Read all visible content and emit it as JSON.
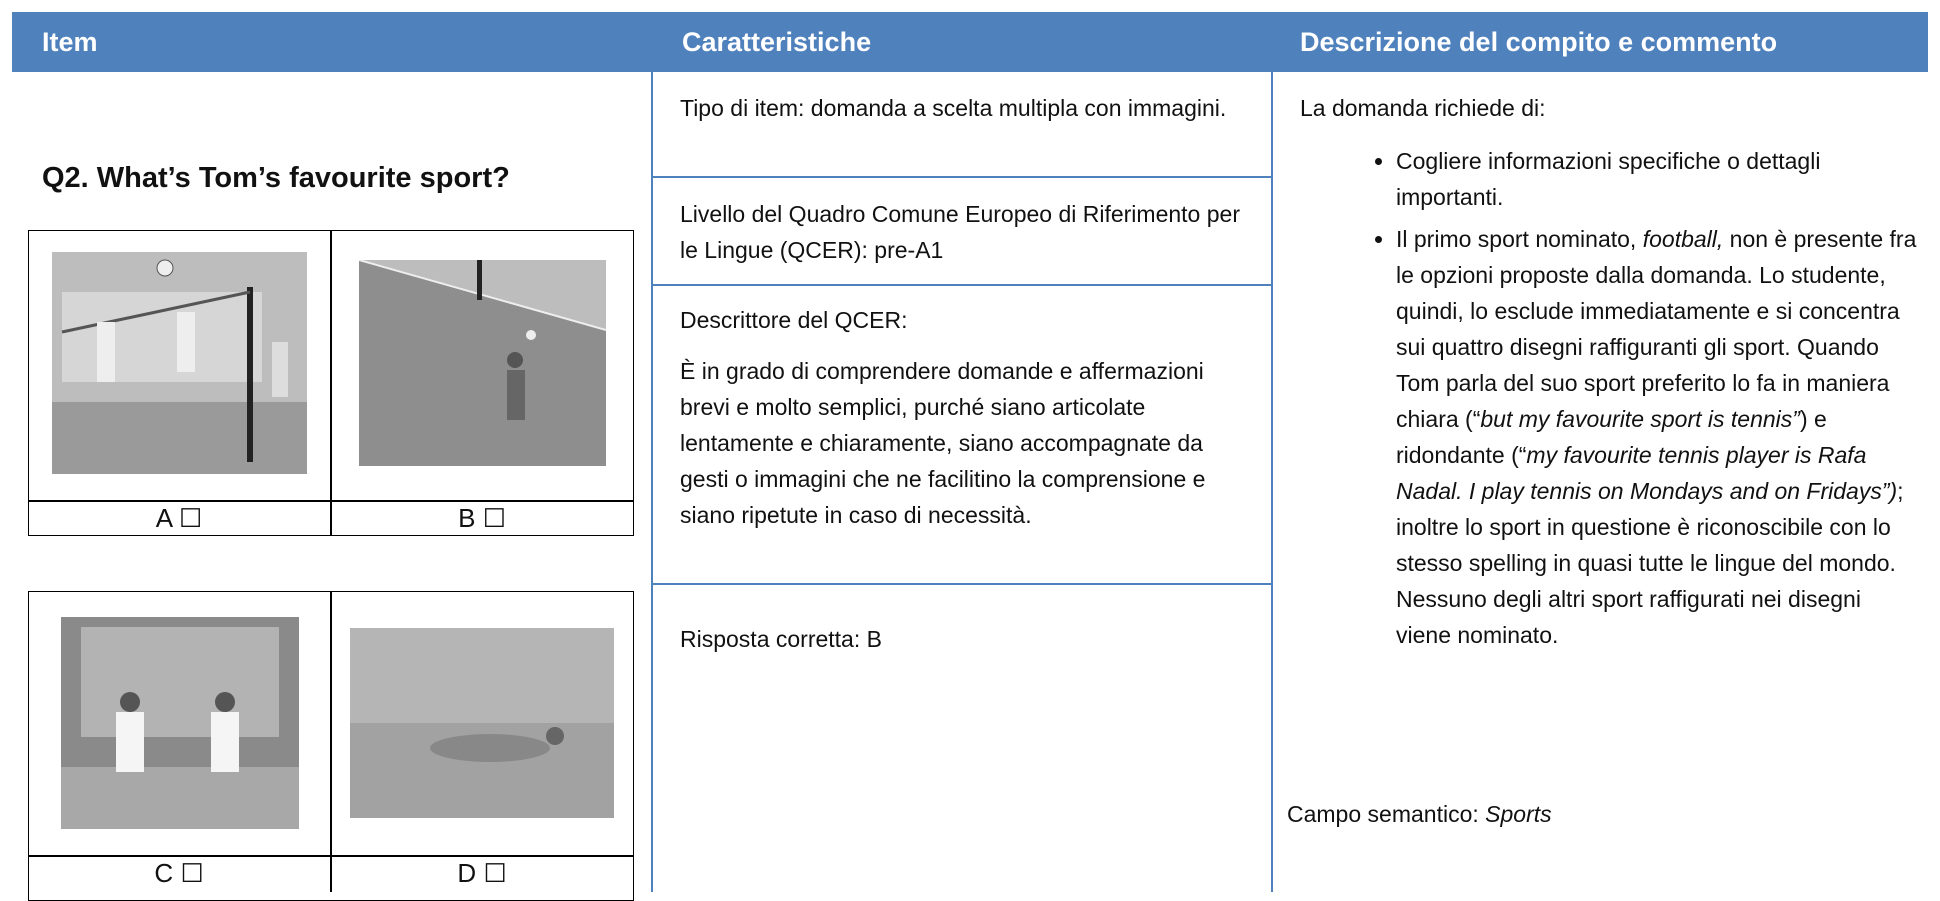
{
  "header": {
    "columns": [
      "Item",
      "Caratteristiche",
      "Descrizione del compito e commento"
    ]
  },
  "item": {
    "question": "Q2. What’s Tom’s favourite sport?",
    "options": [
      "A ☐",
      "B ☐",
      "C ☐",
      "D ☐"
    ]
  },
  "caratteristiche": [
    "Tipo di item: domanda a scelta multipla con immagini.",
    "Livello del Quadro Comune Europeo di Riferimento per le Lingue (QCER): pre-A1",
    {
      "title": "Descrittore del QCER:",
      "text": "È in grado di comprendere domande e affermazioni brevi e molto semplici, purché siano articolate lentamente e chiaramente, siano accompagnate da gesti o immagini che ne facilitino la comprensione e siano ripetute in caso di necessità."
    },
    "Risposta corretta: B"
  ],
  "descrizione": {
    "intro": "La domanda richiede di:",
    "bullets": [
      [
        "Cogliere informazioni specifiche o dettagli importanti."
      ],
      [
        "Il primo sport nominato, ",
        "football,",
        " non è presente fra le opzioni proposte dalla domanda. Lo studente, quindi, lo esclude immediatamente e si concentra sui quattro disegni raffiguranti gli sport. Quando Tom parla del suo sport preferito lo fa in maniera chiara (“",
        "but my favourite sport is tennis”",
        ") e ridondante (“",
        "my favourite tennis player is Rafa Nadal. I play tennis on Mondays and on Fridays”)",
        "; inoltre lo sport in questione è riconoscibile con lo stesso spelling in quasi tutte le lingue del mondo. Nessuno degli altri sport raffigurati nei disegni viene nominato."
      ]
    ],
    "campo": [
      "Campo semantico: ",
      "Sports"
    ]
  }
}
